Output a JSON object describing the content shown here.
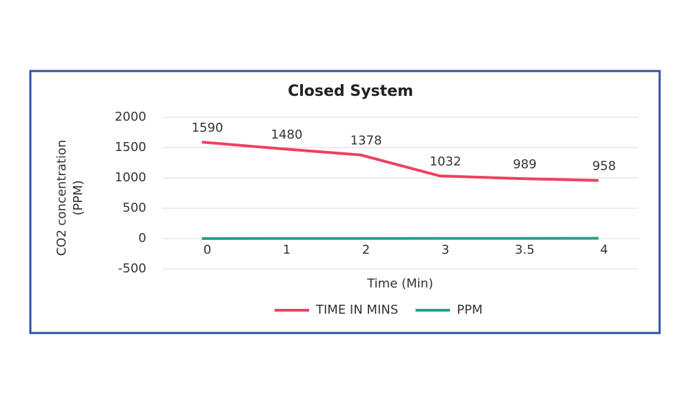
{
  "chart_data": {
    "type": "line",
    "title": "Closed System",
    "xlabel": "Time (Min)",
    "ylabel": [
      "CO2 concentration",
      "(PPM)"
    ],
    "categories": [
      "0",
      "1",
      "2",
      "3",
      "3.5",
      "4"
    ],
    "series": [
      {
        "name": "TIME IN MINS",
        "color": "#f0405e",
        "values": [
          1590,
          1480,
          1378,
          1032,
          989,
          958
        ],
        "data_labels": true
      },
      {
        "name": "PPM",
        "color": "#2a9d8f",
        "values": [
          0,
          1,
          2,
          3,
          3.5,
          4
        ],
        "data_labels": false
      }
    ],
    "ylim": [
      -500,
      2000
    ],
    "yticks": [
      -500,
      0,
      500,
      1000,
      1500,
      2000
    ],
    "grid": true,
    "legend": "bottom"
  }
}
